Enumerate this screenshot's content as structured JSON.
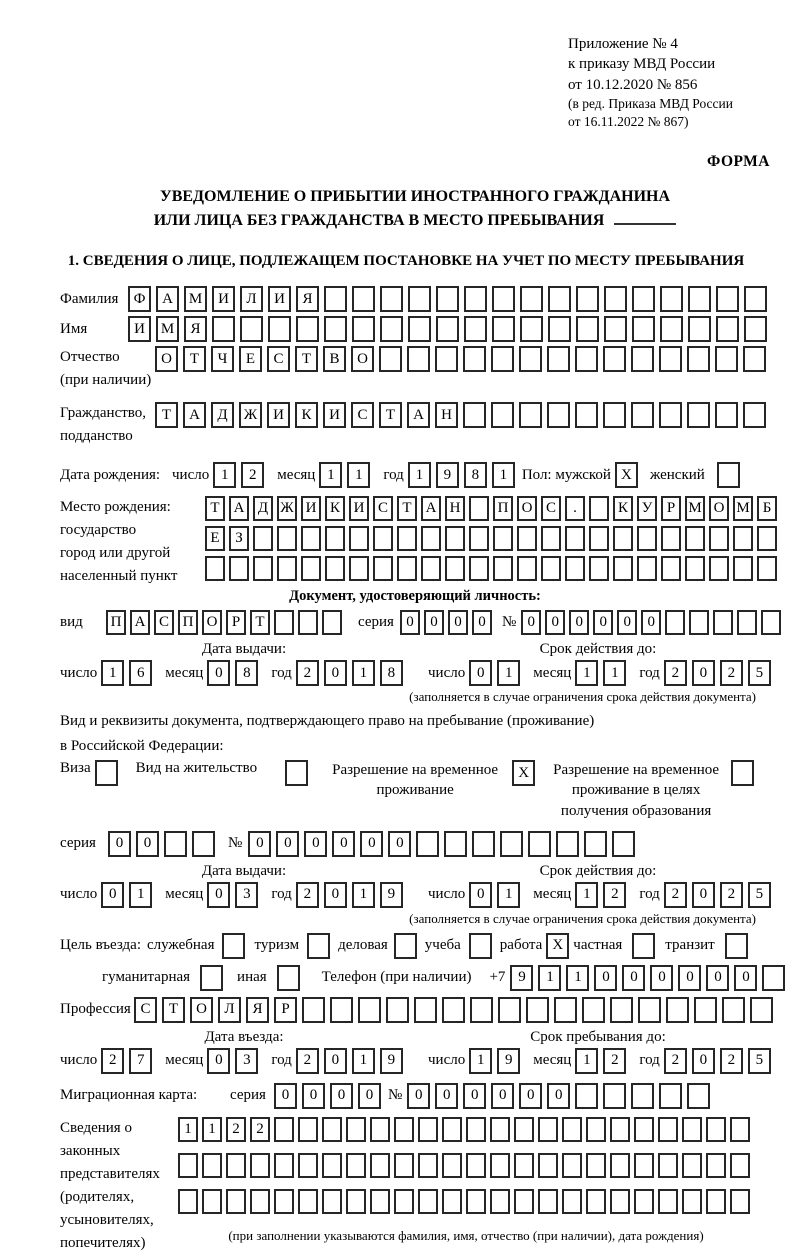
{
  "doc_ref": {
    "line1": "Приложение № 4",
    "line2": "к приказу МВД России",
    "line3": "от 10.12.2020 № 856",
    "line4": "(в ред. Приказа МВД России",
    "line5": "от 16.11.2022 № 867)",
    "form_label": "ФОРМА"
  },
  "title": {
    "line1": "УВЕДОМЛЕНИЕ О ПРИБЫТИИ ИНОСТРАННОГО ГРАЖДАНИНА",
    "line2": "ИЛИ ЛИЦА БЕЗ ГРАЖДАНСТВА В МЕСТО ПРЕБЫВАНИЯ"
  },
  "section1_heading": "1. СВЕДЕНИЯ О ЛИЦЕ, ПОДЛЕЖАЩЕМ ПОСТАНОВКЕ НА УЧЕТ ПО МЕСТУ ПРЕБЫВАНИЯ",
  "date_words": {
    "day": "число",
    "month": "месяц",
    "year": "год"
  },
  "person": {
    "surname": {
      "label": "Фамилия",
      "cells": {
        "len": 23,
        "value": "ФАМИЛИЯ"
      }
    },
    "given_name": {
      "label": "Имя",
      "cells": {
        "len": 23,
        "value": "ИМЯ"
      }
    },
    "patronymic": {
      "label1": "Отчество",
      "label2": "(при наличии)",
      "cells": {
        "len": 22,
        "value": "ОТЧЕСТВО"
      }
    },
    "citizenship": {
      "label1": "Гражданство,",
      "label2": "подданство",
      "cells": {
        "len": 22,
        "value": "ТАДЖИКИСТАН"
      }
    },
    "birth_date": {
      "label": "Дата рождения:",
      "day": {
        "len": 2,
        "value": "12"
      },
      "month": {
        "len": 2,
        "value": "11"
      },
      "year": {
        "len": 4,
        "value": "1981"
      },
      "sex_label": "Пол: мужской",
      "male_checked": "X",
      "female_label": "женский",
      "female_checked": ""
    },
    "birth_place": {
      "label1": "Место рождения:",
      "label2": "государство",
      "label3": "город или другой",
      "label4": "населенный пункт",
      "row1": {
        "len": 24,
        "value": "ТАДЖИКИСТАН ПОС. КУРМОМБ"
      },
      "row2": {
        "len": 24,
        "value": "ЕЗ"
      },
      "row3": {
        "len": 24,
        "value": ""
      }
    }
  },
  "identity_doc": {
    "heading": "Документ, удостоверяющий личность:",
    "kind_label": "вид",
    "kind": {
      "len": 10,
      "value": "ПАСПОРТ"
    },
    "series_label": "серия",
    "series": {
      "len": 4,
      "value": "0000"
    },
    "number_label": "№",
    "number": {
      "len": 11,
      "value": "000000"
    },
    "issue_heading": "Дата выдачи:",
    "issue_day": {
      "len": 2,
      "value": "16"
    },
    "issue_month": {
      "len": 2,
      "value": "08"
    },
    "issue_year": {
      "len": 4,
      "value": "2018"
    },
    "expiry_heading": "Срок действия до:",
    "expiry_day": {
      "len": 2,
      "value": "01"
    },
    "expiry_month": {
      "len": 2,
      "value": "11"
    },
    "expiry_year": {
      "len": 4,
      "value": "2025"
    },
    "note": "(заполняется в случае ограничения срока действия документа)"
  },
  "residence_doc": {
    "intro1": "Вид и реквизиты документа, подтверждающего право на пребывание (проживание)",
    "intro2": "в Российской Федерации:",
    "visa_label": "Виза",
    "visa_checked": "",
    "residence_permit_label": "Вид на жительство",
    "residence_permit_checked": "",
    "temp_permit_label": "Разрешение на временное проживание",
    "temp_permit_checked": "X",
    "edu_permit_label": "Разрешение на временное проживание в целях получения образования",
    "edu_permit_checked": "",
    "series_label": "серия",
    "series": {
      "len": 4,
      "value": "00"
    },
    "number_label": "№",
    "number": {
      "len": 14,
      "value": "000000"
    },
    "issue_heading": "Дата выдачи:",
    "issue_day": {
      "len": 2,
      "value": "01"
    },
    "issue_month": {
      "len": 2,
      "value": "03"
    },
    "issue_year": {
      "len": 4,
      "value": "2019"
    },
    "expiry_heading": "Срок действия до:",
    "expiry_day": {
      "len": 2,
      "value": "01"
    },
    "expiry_month": {
      "len": 2,
      "value": "12"
    },
    "expiry_year": {
      "len": 4,
      "value": "2025"
    },
    "note": "(заполняется в случае ограничения срока действия документа)"
  },
  "visit": {
    "purpose_label": "Цель въезда:",
    "p_official_label": "служебная",
    "p_official_checked": "",
    "p_tourism_label": "туризм",
    "p_tourism_checked": "",
    "p_business_label": "деловая",
    "p_business_checked": "",
    "p_study_label": "учеба",
    "p_study_checked": "",
    "p_work_label": "работа",
    "p_work_checked": "X",
    "p_private_label": "частная",
    "p_private_checked": "",
    "p_transit_label": "транзит",
    "p_transit_checked": "",
    "p_humanitarian_label": "гуманитарная",
    "p_humanitarian_checked": "",
    "p_other_label": "иная",
    "p_other_checked": "",
    "phone_label": "Телефон (при наличии)",
    "phone_prefix": "+7",
    "phone": {
      "len": 10,
      "value": "911000000"
    },
    "profession_label": "Профессия",
    "profession": {
      "len": 23,
      "value": "СТОЛЯР"
    }
  },
  "entry": {
    "entry_heading": "Дата въезда:",
    "entry_day": {
      "len": 2,
      "value": "27"
    },
    "entry_month": {
      "len": 2,
      "value": "03"
    },
    "entry_year": {
      "len": 4,
      "value": "2019"
    },
    "stay_heading": "Срок пребывания до:",
    "stay_day": {
      "len": 2,
      "value": "19"
    },
    "stay_month": {
      "len": 2,
      "value": "12"
    },
    "stay_year": {
      "len": 4,
      "value": "2025"
    }
  },
  "migration_card": {
    "label": "Миграционная карта:",
    "series_label": "серия",
    "series": {
      "len": 4,
      "value": "0000"
    },
    "number_label": "№",
    "number": {
      "len": 11,
      "value": "000000"
    }
  },
  "representatives": {
    "label1": "Сведения о",
    "label2": "законных",
    "label3": "представителях",
    "label4": "(родителях,",
    "label5": "усыновителях,",
    "label6": "попечителях)",
    "row1": {
      "len": 24,
      "value": "1122"
    },
    "row2": {
      "len": 24,
      "value": ""
    },
    "row3": {
      "len": 24,
      "value": ""
    },
    "note": "(при заполнении указываются фамилия, имя, отчество (при наличии), дата рождения)"
  }
}
